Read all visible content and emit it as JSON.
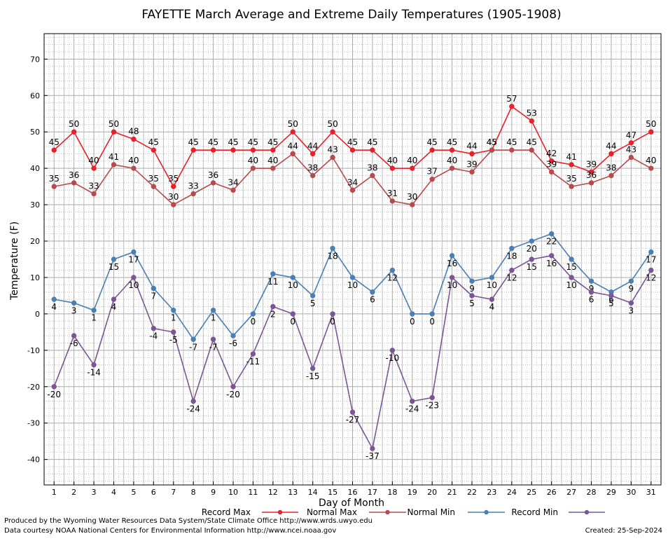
{
  "footer": {
    "credit_line1": "Produced by the Wyoming Water Resources Data System/State Climate Office http://www.wrds.uwyo.edu",
    "credit_line2": "Data courtesy NOAA National Centers for Environmental Information http://www.ncei.noaa.gov",
    "created": "Created:  25-Sep-2024"
  },
  "chart_data": {
    "type": "line",
    "title": "FAYETTE March Average and Extreme Daily Temperatures (1905-1908)",
    "xlabel": "Day of Month",
    "ylabel": "Temperature (F)",
    "xlim": [
      0.5,
      31.5
    ],
    "ylim": [
      -47,
      77
    ],
    "yticks": [
      -40,
      -30,
      -20,
      -10,
      0,
      10,
      20,
      30,
      40,
      50,
      60,
      70
    ],
    "grid": true,
    "legend_position": "bottom",
    "x": [
      1,
      2,
      3,
      4,
      5,
      6,
      7,
      8,
      9,
      10,
      11,
      12,
      13,
      14,
      15,
      16,
      17,
      18,
      19,
      20,
      21,
      22,
      23,
      24,
      25,
      26,
      27,
      28,
      29,
      30,
      31
    ],
    "series": [
      {
        "name": "Record Max",
        "color": "#e8202a",
        "values": [
          45,
          50,
          40,
          50,
          48,
          45,
          35,
          45,
          45,
          45,
          45,
          45,
          50,
          44,
          50,
          45,
          45,
          40,
          40,
          45,
          45,
          44,
          45,
          57,
          53,
          42,
          41,
          39,
          44,
          47,
          50
        ]
      },
      {
        "name": "Normal Max",
        "color": "#b84a4c",
        "values": [
          35,
          36,
          33,
          41,
          40,
          35,
          30,
          33,
          36,
          34,
          40,
          40,
          44,
          38,
          43,
          34,
          38,
          31,
          30,
          37,
          40,
          39,
          45,
          45,
          45,
          39,
          35,
          36,
          38,
          43,
          40
        ]
      },
      {
        "name": "Normal Min",
        "color": "#4a7fb5",
        "values": [
          4,
          3,
          1,
          15,
          17,
          7,
          1,
          -7,
          1,
          -6,
          0,
          11,
          10,
          5,
          18,
          10,
          6,
          12,
          0,
          0,
          16,
          9,
          10,
          18,
          20,
          22,
          15,
          9,
          6,
          9,
          17
        ]
      },
      {
        "name": "Record Min",
        "color": "#7b5594",
        "values": [
          -20,
          -6,
          -14,
          4,
          10,
          -4,
          -5,
          -24,
          -7,
          -20,
          -11,
          2,
          0,
          -15,
          0,
          -27,
          -37,
          -10,
          -24,
          -23,
          10,
          5,
          4,
          12,
          15,
          16,
          10,
          6,
          5,
          3,
          12
        ]
      }
    ]
  }
}
